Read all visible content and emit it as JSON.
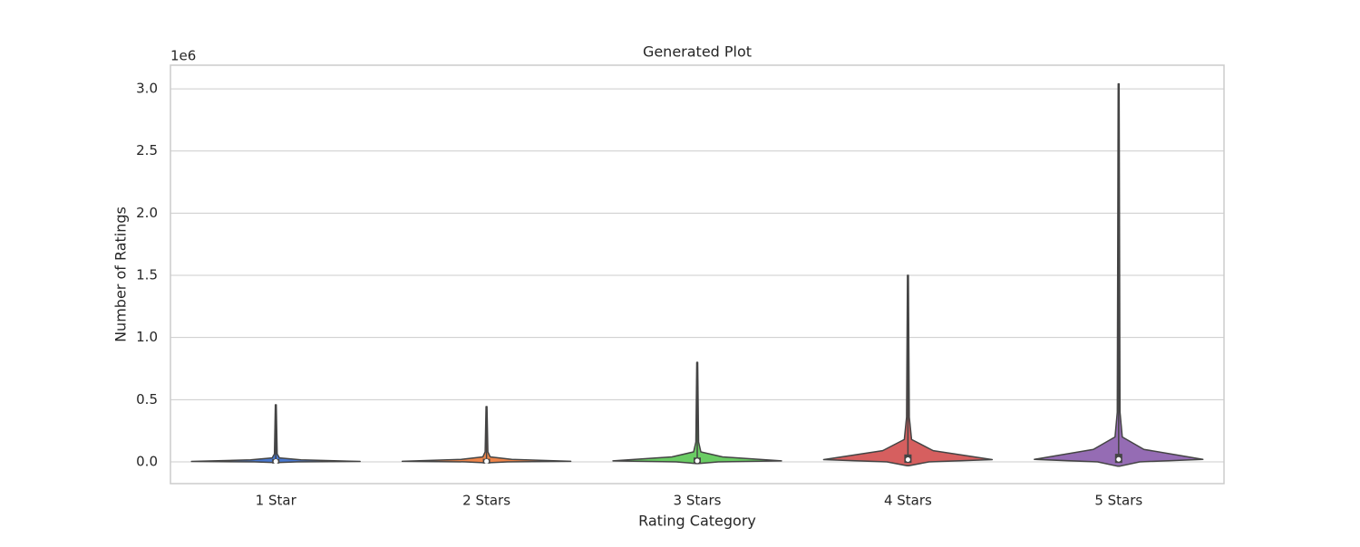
{
  "chart_data": {
    "type": "violin",
    "title": "Generated Plot",
    "x_label": "Rating Category",
    "y_label": "Number of Ratings",
    "y_offset_label": "1e6",
    "categories": [
      "1 Star",
      "2 Stars",
      "3 Stars",
      "4 Stars",
      "5 Stars"
    ],
    "colors": [
      "#4878d0",
      "#ee854a",
      "#6acc64",
      "#d65f5f",
      "#956cb4"
    ],
    "min": [
      0,
      0,
      0,
      0,
      0
    ],
    "q1": [
      0.001,
      0.001,
      0.003,
      0.006,
      0.006
    ],
    "median": [
      0.003,
      0.004,
      0.008,
      0.018,
      0.02
    ],
    "q3": [
      0.008,
      0.01,
      0.02,
      0.045,
      0.05
    ],
    "max": [
      0.459,
      0.444,
      0.8,
      1.5,
      3.04
    ],
    "ylim": [
      -0.175,
      3.19
    ],
    "yticks": [
      {
        "value": 0,
        "label": "0.0"
      },
      0.5,
      {
        "value": 1,
        "label": "1.0"
      },
      1.5,
      {
        "value": 2,
        "label": "2.0"
      },
      2.5,
      {
        "value": 3,
        "label": "3.0"
      }
    ],
    "grid": true
  }
}
